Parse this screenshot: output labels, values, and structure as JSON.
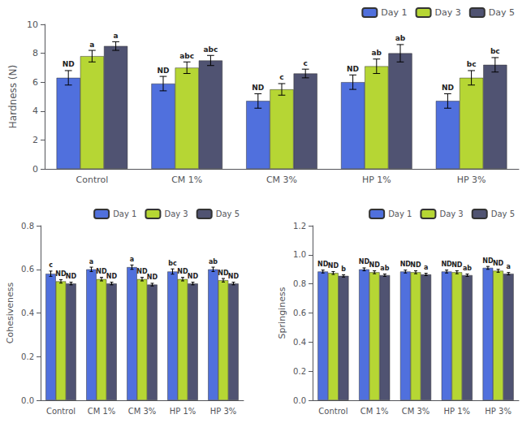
{
  "chart_data": [
    {
      "type": "bar",
      "categories": [
        "Control",
        "CM 1%",
        "CM 3%",
        "HP 1%",
        "HP 3%"
      ],
      "ylabel": "Hardness (N)",
      "ylim": [
        0,
        10
      ],
      "yticks": [
        0,
        2,
        4,
        6,
        8,
        10
      ],
      "grid": false,
      "legend": "upper right",
      "series": [
        {
          "name": "Day 1",
          "values": [
            6.3,
            5.9,
            4.7,
            6.0,
            4.7
          ],
          "errors": [
            0.5,
            0.5,
            0.5,
            0.5,
            0.5
          ],
          "annotations": [
            "ND",
            "ND",
            "ND",
            "ND",
            "ND"
          ]
        },
        {
          "name": "Day 3",
          "values": [
            7.8,
            7.0,
            5.5,
            7.1,
            6.3
          ],
          "errors": [
            0.4,
            0.4,
            0.4,
            0.5,
            0.5
          ],
          "annotations": [
            "a",
            "abc",
            "c",
            "ab",
            "bc"
          ]
        },
        {
          "name": "Day 5",
          "values": [
            8.5,
            7.5,
            6.6,
            8.0,
            7.2
          ],
          "errors": [
            0.3,
            0.35,
            0.3,
            0.6,
            0.5
          ],
          "annotations": [
            "a",
            "abc",
            "c",
            "ab",
            "bc"
          ]
        }
      ]
    },
    {
      "type": "bar",
      "categories": [
        "Control",
        "CM 1%",
        "CM 3%",
        "HP 1%",
        "HP 3%"
      ],
      "ylabel": "Cohesiveness",
      "ylim": [
        0,
        0.8
      ],
      "yticks": [
        {
          "value": 0,
          "label": "0.0"
        },
        0.2,
        0.4,
        0.6,
        0.8
      ],
      "grid": false,
      "legend": "upper right",
      "series": [
        {
          "name": "Day 1",
          "values": [
            0.58,
            0.6,
            0.61,
            0.59,
            0.6
          ],
          "errors": [
            0.012,
            0.01,
            0.01,
            0.012,
            0.01
          ],
          "annotations": [
            "c",
            "a",
            "a",
            "bc",
            "ab"
          ]
        },
        {
          "name": "Day 3",
          "values": [
            0.545,
            0.555,
            0.555,
            0.555,
            0.55
          ],
          "errors": [
            0.008,
            0.008,
            0.008,
            0.008,
            0.008
          ],
          "annotations": [
            "ND",
            "ND",
            "ND",
            "ND",
            "ND"
          ]
        },
        {
          "name": "Day 5",
          "values": [
            0.535,
            0.535,
            0.53,
            0.535,
            0.535
          ],
          "errors": [
            0.006,
            0.006,
            0.006,
            0.006,
            0.006
          ],
          "annotations": [
            "ND",
            "ND",
            "ND",
            "ND",
            "ND"
          ]
        }
      ]
    },
    {
      "type": "bar",
      "categories": [
        "Control",
        "CM 1%",
        "CM 3%",
        "HP 1%",
        "HP 3%"
      ],
      "ylabel": "Springiness",
      "ylim": [
        0,
        1.2
      ],
      "yticks": [
        {
          "value": 0,
          "label": "0.0"
        },
        0.2,
        0.4,
        0.6,
        0.8,
        {
          "value": 1,
          "label": "1.0"
        },
        1.2
      ],
      "grid": false,
      "legend": "upper right",
      "series": [
        {
          "name": "Day 1",
          "values": [
            0.885,
            0.9,
            0.885,
            0.885,
            0.91
          ],
          "errors": [
            0.01,
            0.01,
            0.01,
            0.01,
            0.01
          ],
          "annotations": [
            "ND",
            "ND",
            "ND",
            "ND",
            "ND"
          ]
        },
        {
          "name": "Day 3",
          "values": [
            0.875,
            0.88,
            0.88,
            0.88,
            0.89
          ],
          "errors": [
            0.01,
            0.01,
            0.01,
            0.01,
            0.01
          ],
          "annotations": [
            "ND",
            "ND",
            "ND",
            "ND",
            "ND"
          ]
        },
        {
          "name": "Day 5",
          "values": [
            0.855,
            0.86,
            0.865,
            0.86,
            0.87
          ],
          "errors": [
            0.008,
            0.008,
            0.008,
            0.008,
            0.008
          ],
          "annotations": [
            "b",
            "ab",
            "a",
            "ab",
            "a"
          ]
        }
      ]
    }
  ]
}
